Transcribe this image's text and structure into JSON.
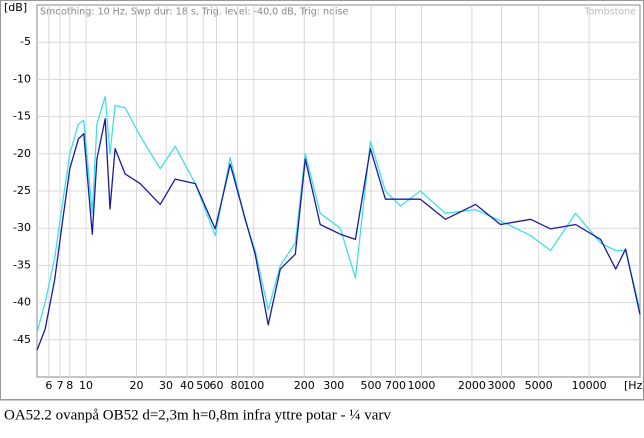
{
  "chart_data": {
    "type": "line",
    "subtitle": "Smoothing: 10 Hz, Swp dur: 18 s, Trig. level: -40,0 dB, Trig: noise",
    "watermark": "Tombstone",
    "caption": "OA52.2 ovanpå OB52   d=2,3m h=0,8m  infra yttre potar - ¼ varv",
    "y_label": "[dB]",
    "x_label": "[Hz]",
    "x_log": true,
    "grid": true,
    "xlim": [
      5.1,
      20100
    ],
    "ylim": [
      -50,
      0
    ],
    "xticks": [
      6,
      7,
      8,
      10,
      20,
      30,
      40,
      50,
      60,
      80,
      100,
      200,
      300,
      500,
      700,
      1000,
      2000,
      3000,
      5000,
      10000
    ],
    "yticks": [
      -5,
      -10,
      -15,
      -20,
      -25,
      -30,
      -35,
      -40,
      -45
    ],
    "x": [
      5.1,
      5.7,
      6.5,
      7.2,
      8.0,
      9.0,
      9.7,
      10.9,
      11.6,
      13.0,
      13.9,
      14.9,
      17.1,
      21,
      27.7,
      34,
      44.8,
      58.9,
      72.4,
      89,
      102,
      122,
      144,
      177,
      203,
      249,
      328,
      404,
      496,
      610,
      750,
      986,
      1390,
      2100,
      2960,
      4480,
      5890,
      8300,
      11700,
      14400,
      16500,
      20100
    ],
    "series": [
      {
        "color": "#40e0e8",
        "values": [
          -44,
          -40,
          -34,
          -27,
          -20,
          -16,
          -15.5,
          -28,
          -16,
          -12.3,
          -20,
          -13.5,
          -13.8,
          -17.6,
          -22,
          -19,
          -24,
          -31,
          -20.5,
          -29,
          -33,
          -41,
          -35,
          -32,
          -20,
          -28,
          -30,
          -36.7,
          -18.3,
          -25,
          -27,
          -25,
          -28,
          -27.5,
          -29,
          -31,
          -33,
          -28,
          -32,
          -33,
          -33,
          -41
        ]
      },
      {
        "color": "#1a1aa0",
        "values": [
          -46.4,
          -43.6,
          -36.9,
          -29.5,
          -22,
          -18,
          -17.3,
          -30.8,
          -20.7,
          -15.3,
          -27.4,
          -19.3,
          -22.7,
          -24,
          -26.8,
          -23.4,
          -24,
          -30.1,
          -21.4,
          -28.8,
          -33.5,
          -43,
          -35.5,
          -33.5,
          -20.7,
          -29.5,
          -30.8,
          -31.5,
          -19.3,
          -26.1,
          -26.1,
          -26.1,
          -28.8,
          -26.8,
          -29.5,
          -28.8,
          -30.1,
          -29.5,
          -31.5,
          -35.5,
          -32.8,
          -41.6
        ]
      }
    ]
  }
}
